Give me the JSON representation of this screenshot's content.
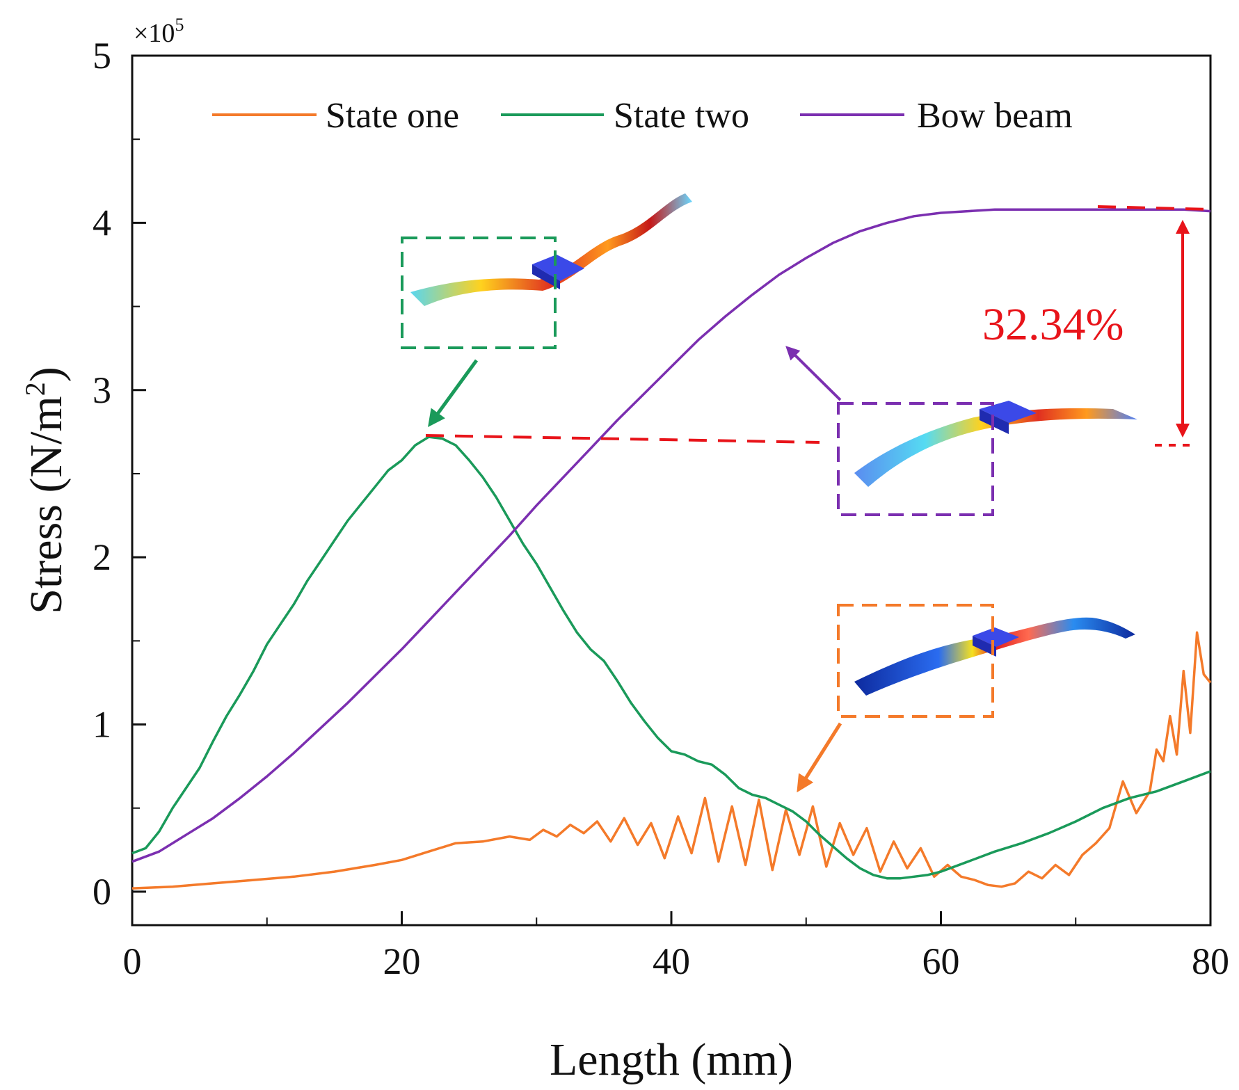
{
  "chart_data": {
    "type": "line",
    "xlabel": "Length (mm)",
    "ylabel": "Stress (N/m²)",
    "ylabel_parts": {
      "main": "Stress (N/m",
      "sup": "2",
      "tail": ")"
    },
    "y_multiplier": "×10⁵",
    "y_multiplier_parts": {
      "base": "×10",
      "sup": "5"
    },
    "xlim": [
      0,
      80
    ],
    "ylim": [
      -0.2,
      5
    ],
    "x_ticks": [
      "0",
      "20",
      "40",
      "60",
      "80"
    ],
    "y_ticks": [
      "0",
      "1",
      "2",
      "3",
      "4",
      "5"
    ],
    "legend_position": "top",
    "series": [
      {
        "name": "State one",
        "color": "#f47a2a",
        "points": [
          [
            0,
            0.02
          ],
          [
            3,
            0.03
          ],
          [
            6,
            0.05
          ],
          [
            9,
            0.07
          ],
          [
            12,
            0.09
          ],
          [
            15,
            0.12
          ],
          [
            18,
            0.16
          ],
          [
            20,
            0.19
          ],
          [
            22,
            0.24
          ],
          [
            24,
            0.29
          ],
          [
            26,
            0.3
          ],
          [
            28,
            0.33
          ],
          [
            29.5,
            0.31
          ],
          [
            30.5,
            0.37
          ],
          [
            31.5,
            0.33
          ],
          [
            32.5,
            0.4
          ],
          [
            33.5,
            0.35
          ],
          [
            34.5,
            0.42
          ],
          [
            35.5,
            0.3
          ],
          [
            36.5,
            0.44
          ],
          [
            37.5,
            0.28
          ],
          [
            38.5,
            0.41
          ],
          [
            39.5,
            0.2
          ],
          [
            40.5,
            0.45
          ],
          [
            41.5,
            0.23
          ],
          [
            42.5,
            0.56
          ],
          [
            43.5,
            0.18
          ],
          [
            44.5,
            0.51
          ],
          [
            45.5,
            0.16
          ],
          [
            46.5,
            0.55
          ],
          [
            47.5,
            0.13
          ],
          [
            48.5,
            0.49
          ],
          [
            49.5,
            0.22
          ],
          [
            50.5,
            0.51
          ],
          [
            51.5,
            0.15
          ],
          [
            52.5,
            0.41
          ],
          [
            53.5,
            0.22
          ],
          [
            54.5,
            0.38
          ],
          [
            55.5,
            0.12
          ],
          [
            56.5,
            0.3
          ],
          [
            57.5,
            0.14
          ],
          [
            58.5,
            0.26
          ],
          [
            59.5,
            0.09
          ],
          [
            60.5,
            0.16
          ],
          [
            61.5,
            0.09
          ],
          [
            62.5,
            0.07
          ],
          [
            63.5,
            0.04
          ],
          [
            64.5,
            0.03
          ],
          [
            65.5,
            0.05
          ],
          [
            66.5,
            0.12
          ],
          [
            67.5,
            0.08
          ],
          [
            68.5,
            0.16
          ],
          [
            69.5,
            0.1
          ],
          [
            70.5,
            0.22
          ],
          [
            71.5,
            0.29
          ],
          [
            72.5,
            0.38
          ],
          [
            73.5,
            0.66
          ],
          [
            74.5,
            0.47
          ],
          [
            75.5,
            0.6
          ],
          [
            76,
            0.85
          ],
          [
            76.5,
            0.78
          ],
          [
            77,
            1.05
          ],
          [
            77.5,
            0.82
          ],
          [
            78,
            1.32
          ],
          [
            78.5,
            0.95
          ],
          [
            79,
            1.55
          ],
          [
            79.5,
            1.3
          ],
          [
            80,
            1.25
          ]
        ]
      },
      {
        "name": "State two",
        "color": "#1a9a5a",
        "points": [
          [
            0,
            0.23
          ],
          [
            1,
            0.26
          ],
          [
            2,
            0.36
          ],
          [
            3,
            0.5
          ],
          [
            4,
            0.62
          ],
          [
            5,
            0.74
          ],
          [
            6,
            0.9
          ],
          [
            7,
            1.05
          ],
          [
            8,
            1.18
          ],
          [
            9,
            1.32
          ],
          [
            10,
            1.48
          ],
          [
            11,
            1.6
          ],
          [
            12,
            1.72
          ],
          [
            13,
            1.86
          ],
          [
            14,
            1.98
          ],
          [
            15,
            2.1
          ],
          [
            16,
            2.22
          ],
          [
            17,
            2.32
          ],
          [
            18,
            2.42
          ],
          [
            19,
            2.52
          ],
          [
            20,
            2.58
          ],
          [
            21,
            2.67
          ],
          [
            22,
            2.72
          ],
          [
            23,
            2.71
          ],
          [
            24,
            2.67
          ],
          [
            25,
            2.58
          ],
          [
            26,
            2.48
          ],
          [
            27,
            2.36
          ],
          [
            28,
            2.22
          ],
          [
            29,
            2.08
          ],
          [
            30,
            1.96
          ],
          [
            31,
            1.82
          ],
          [
            32,
            1.68
          ],
          [
            33,
            1.55
          ],
          [
            34,
            1.45
          ],
          [
            35,
            1.38
          ],
          [
            36,
            1.26
          ],
          [
            37,
            1.13
          ],
          [
            38,
            1.02
          ],
          [
            39,
            0.92
          ],
          [
            40,
            0.84
          ],
          [
            41,
            0.82
          ],
          [
            42,
            0.78
          ],
          [
            43,
            0.76
          ],
          [
            44,
            0.7
          ],
          [
            45,
            0.62
          ],
          [
            46,
            0.58
          ],
          [
            47,
            0.56
          ],
          [
            48,
            0.52
          ],
          [
            49,
            0.48
          ],
          [
            50,
            0.42
          ],
          [
            51,
            0.34
          ],
          [
            52,
            0.27
          ],
          [
            53,
            0.2
          ],
          [
            54,
            0.14
          ],
          [
            55,
            0.1
          ],
          [
            56,
            0.08
          ],
          [
            57,
            0.08
          ],
          [
            58,
            0.09
          ],
          [
            59,
            0.1
          ],
          [
            60,
            0.12
          ],
          [
            62,
            0.18
          ],
          [
            64,
            0.24
          ],
          [
            66,
            0.29
          ],
          [
            68,
            0.35
          ],
          [
            70,
            0.42
          ],
          [
            72,
            0.5
          ],
          [
            74,
            0.56
          ],
          [
            76,
            0.6
          ],
          [
            78,
            0.66
          ],
          [
            80,
            0.72
          ]
        ]
      },
      {
        "name": "Bow beam",
        "color": "#7b2fb0",
        "points": [
          [
            0,
            0.18
          ],
          [
            2,
            0.24
          ],
          [
            4,
            0.34
          ],
          [
            6,
            0.44
          ],
          [
            8,
            0.56
          ],
          [
            10,
            0.69
          ],
          [
            12,
            0.83
          ],
          [
            14,
            0.98
          ],
          [
            16,
            1.13
          ],
          [
            18,
            1.29
          ],
          [
            20,
            1.45
          ],
          [
            22,
            1.62
          ],
          [
            24,
            1.79
          ],
          [
            26,
            1.96
          ],
          [
            28,
            2.13
          ],
          [
            30,
            2.31
          ],
          [
            32,
            2.48
          ],
          [
            34,
            2.65
          ],
          [
            36,
            2.82
          ],
          [
            38,
            2.98
          ],
          [
            40,
            3.14
          ],
          [
            42,
            3.3
          ],
          [
            44,
            3.44
          ],
          [
            46,
            3.57
          ],
          [
            48,
            3.69
          ],
          [
            50,
            3.79
          ],
          [
            52,
            3.88
          ],
          [
            54,
            3.95
          ],
          [
            56,
            4.0
          ],
          [
            58,
            4.04
          ],
          [
            60,
            4.06
          ],
          [
            62,
            4.07
          ],
          [
            64,
            4.08
          ],
          [
            66,
            4.08
          ],
          [
            68,
            4.08
          ],
          [
            70,
            4.08
          ],
          [
            72,
            4.08
          ],
          [
            74,
            4.08
          ],
          [
            76,
            4.08
          ],
          [
            78,
            4.08
          ],
          [
            80,
            4.07
          ]
        ]
      }
    ],
    "annotations": {
      "percent_text": "32.34%",
      "percent_color": "#e8141a",
      "peak_state_two": {
        "x": 22,
        "y": 2.72
      },
      "peak_bow_beam": {
        "x": 76,
        "y": 4.08
      }
    }
  }
}
